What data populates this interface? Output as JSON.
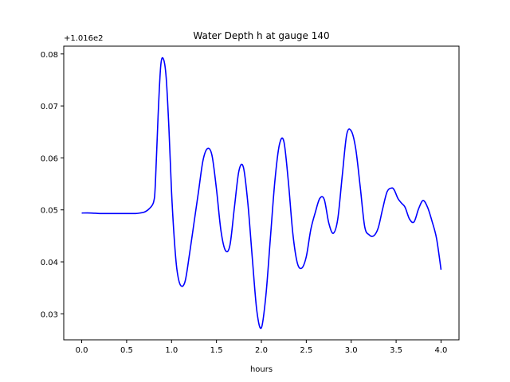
{
  "chart_data": {
    "type": "line",
    "title": "Water Depth h at gauge 140",
    "xlabel": "hours",
    "ylabel": "",
    "offset_text": "+1.016e2",
    "xlim": [
      -0.2,
      4.2
    ],
    "ylim": [
      0.025,
      0.0815
    ],
    "xticks": [
      0.0,
      0.5,
      1.0,
      1.5,
      2.0,
      2.5,
      3.0,
      3.5,
      4.0
    ],
    "xtick_labels": [
      "0.0",
      "0.5",
      "1.0",
      "1.5",
      "2.0",
      "2.5",
      "3.0",
      "3.5",
      "4.0"
    ],
    "yticks": [
      0.03,
      0.04,
      0.05,
      0.06,
      0.07,
      0.08
    ],
    "ytick_labels": [
      "0.03",
      "0.04",
      "0.05",
      "0.06",
      "0.07",
      "0.08"
    ],
    "grid": false,
    "series": [
      {
        "color": "#0000ff",
        "x": [
          0.0,
          0.1,
          0.2,
          0.3,
          0.4,
          0.5,
          0.6,
          0.65,
          0.7,
          0.75,
          0.8,
          0.82,
          0.85,
          0.88,
          0.91,
          0.94,
          0.97,
          1.0,
          1.03,
          1.06,
          1.1,
          1.15,
          1.2,
          1.25,
          1.3,
          1.35,
          1.4,
          1.45,
          1.5,
          1.55,
          1.6,
          1.65,
          1.7,
          1.75,
          1.8,
          1.85,
          1.9,
          1.95,
          2.0,
          2.05,
          2.1,
          2.15,
          2.2,
          2.25,
          2.3,
          2.35,
          2.4,
          2.45,
          2.5,
          2.55,
          2.6,
          2.65,
          2.7,
          2.75,
          2.8,
          2.85,
          2.9,
          2.95,
          3.0,
          3.05,
          3.1,
          3.15,
          3.2,
          3.25,
          3.3,
          3.35,
          3.4,
          3.45,
          3.48,
          3.52,
          3.56,
          3.6,
          3.65,
          3.7,
          3.75,
          3.8,
          3.85,
          3.9,
          3.95,
          4.0
        ],
        "y": [
          0.0494,
          0.0494,
          0.0493,
          0.0493,
          0.0493,
          0.0493,
          0.0493,
          0.0494,
          0.0496,
          0.0502,
          0.0515,
          0.055,
          0.068,
          0.0778,
          0.079,
          0.0755,
          0.066,
          0.0535,
          0.0445,
          0.0385,
          0.0355,
          0.0362,
          0.0415,
          0.0475,
          0.0535,
          0.0595,
          0.0618,
          0.0605,
          0.054,
          0.046,
          0.0422,
          0.0432,
          0.0505,
          0.0575,
          0.0582,
          0.0512,
          0.0405,
          0.0305,
          0.0273,
          0.0335,
          0.0445,
          0.0555,
          0.0625,
          0.0632,
          0.0555,
          0.0455,
          0.0398,
          0.0388,
          0.041,
          0.0462,
          0.0495,
          0.0522,
          0.052,
          0.0475,
          0.0455,
          0.0482,
          0.0565,
          0.0645,
          0.0652,
          0.0618,
          0.0545,
          0.0468,
          0.0452,
          0.045,
          0.0465,
          0.0502,
          0.0535,
          0.0542,
          0.0538,
          0.0522,
          0.0513,
          0.0505,
          0.0482,
          0.0477,
          0.0502,
          0.0518,
          0.0505,
          0.0478,
          0.0445,
          0.0385
        ]
      }
    ]
  }
}
